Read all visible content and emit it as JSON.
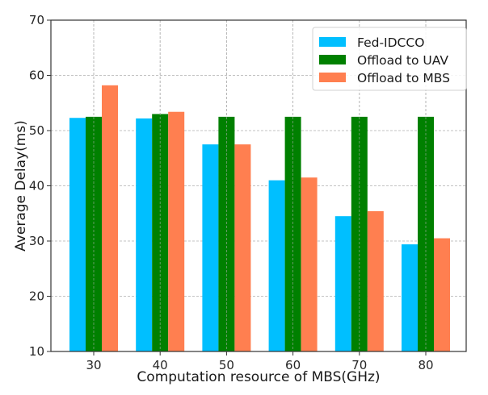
{
  "chart_data": {
    "type": "bar",
    "title": "",
    "xlabel": "Computation resource of MBS(GHz)",
    "ylabel": "Average Delay(ms)",
    "categories": [
      "30",
      "40",
      "50",
      "60",
      "70",
      "80"
    ],
    "series": [
      {
        "name": "Fed-IDCCO",
        "color": "#00bfff",
        "values": [
          52.3,
          52.2,
          47.5,
          41.0,
          34.5,
          29.4
        ]
      },
      {
        "name": "Offload to UAV",
        "color": "#008000",
        "values": [
          52.5,
          53.0,
          52.5,
          52.5,
          52.5,
          52.5
        ]
      },
      {
        "name": "Offload to MBS",
        "color": "#ff7f50",
        "values": [
          58.2,
          53.4,
          47.5,
          41.5,
          35.4,
          30.5
        ]
      }
    ],
    "ylim": [
      10,
      70
    ],
    "yticks": [
      "10",
      "20",
      "30",
      "40",
      "50",
      "60",
      "70"
    ],
    "grid": true,
    "legend_position": "top-right"
  }
}
